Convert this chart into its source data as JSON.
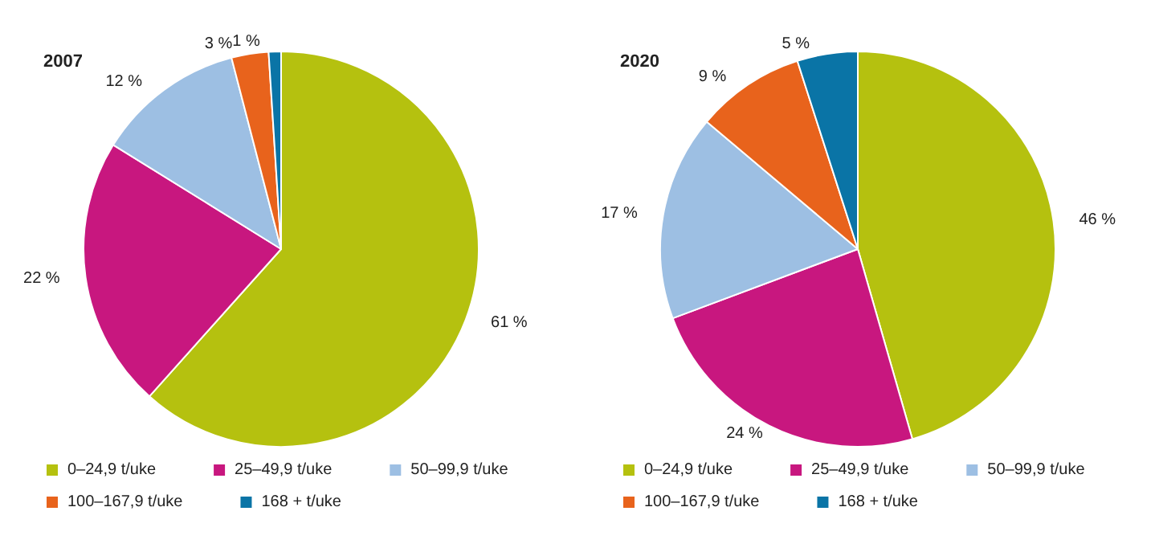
{
  "chart_data": [
    {
      "type": "pie",
      "title": "2007",
      "categories": [
        "0–24,9 t/uke",
        "25–49,9 t/uke",
        "50–99,9 t/uke",
        "100–167,9 t/uke",
        "168 + t/uke"
      ],
      "values": [
        61,
        22,
        12,
        3,
        1
      ],
      "value_labels": [
        "61 %",
        "22 %",
        "12 %",
        "3 %",
        "1 %"
      ],
      "colors": [
        "#b5c10f",
        "#c8177f",
        "#9dbfe3",
        "#e8631c",
        "#0a74a6"
      ],
      "legend": "bottom"
    },
    {
      "type": "pie",
      "title": "2020",
      "categories": [
        "0–24,9 t/uke",
        "25–49,9 t/uke",
        "50–99,9 t/uke",
        "100–167,9 t/uke",
        "168 + t/uke"
      ],
      "values": [
        46,
        24,
        17,
        9,
        5
      ],
      "value_labels": [
        "46 %",
        "24 %",
        "17 %",
        "9 %",
        "5 %"
      ],
      "colors": [
        "#b5c10f",
        "#c8177f",
        "#9dbfe3",
        "#e8631c",
        "#0a74a6"
      ],
      "legend": "bottom"
    }
  ]
}
